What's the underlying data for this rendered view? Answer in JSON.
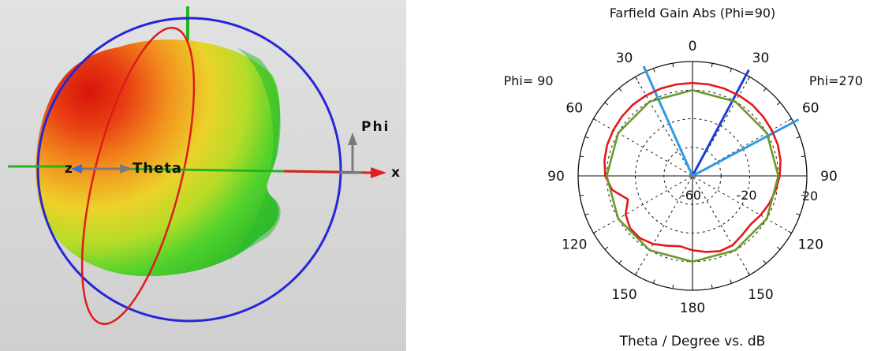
{
  "viewport_3d": {
    "axis_labels": {
      "phi": "Phi",
      "theta": "Theta",
      "z": "z",
      "x": "x"
    },
    "colors": {
      "background": "#d6d6d6",
      "bounding_circle": "#2626d9",
      "theta_ring": "#dd1c1c",
      "z_axis": "#22b422",
      "x_axis": "#e02020"
    }
  },
  "chart_data": {
    "type": "polar",
    "title": "Farfield Gain Abs (Phi=90)",
    "xlabel": "Theta / Degree vs. dB",
    "left_label": "Phi= 90",
    "right_label": "Phi=270",
    "angle_ticks": {
      "top": "0",
      "left": [
        "30",
        "60",
        "90",
        "120",
        "150"
      ],
      "right": [
        "30",
        "60",
        "90",
        "120",
        "150"
      ],
      "bottom": "180"
    },
    "radial_ticks": [
      "-60",
      "-20",
      "20"
    ],
    "rlim": [
      -60,
      20
    ],
    "grid": true,
    "series": [
      {
        "color": "#e31a1a",
        "theta_deg": [
          -180,
          -170,
          -160,
          -150,
          -140,
          -130,
          -120,
          -110,
          -100,
          -90,
          -80,
          -70,
          -60,
          -50,
          -40,
          -30,
          -20,
          -10,
          0,
          10,
          20,
          30,
          40,
          50,
          60,
          70,
          80,
          90,
          100,
          110,
          120,
          130,
          140,
          150,
          160,
          170,
          180
        ],
        "r_db": [
          -8,
          -6,
          -4,
          -4,
          -6,
          -7,
          -5,
          -3,
          -1,
          1,
          2.5,
          3.5,
          4,
          4.5,
          5,
          5,
          5,
          5,
          5,
          5,
          5,
          5,
          5,
          4.5,
          4,
          3.5,
          2.5,
          1,
          -3,
          -12,
          -6,
          -3,
          -3,
          -5,
          -8,
          -10,
          -8
        ]
      },
      {
        "color": "#6b9a2a",
        "theta_deg": [
          -180,
          -150,
          -120,
          -90,
          -60,
          -30,
          0,
          30,
          60,
          90,
          120,
          150,
          180
        ],
        "r_db": [
          0,
          0,
          0,
          0,
          0,
          0,
          0,
          0,
          0,
          0,
          0,
          0,
          0
        ]
      }
    ],
    "direction_lines": [
      {
        "theta_deg": -28,
        "color": "#1a3fd6"
      },
      {
        "theta_deg": -62,
        "color": "#2f9ae6"
      },
      {
        "theta_deg": 24,
        "color": "#2f9ae6"
      }
    ]
  }
}
